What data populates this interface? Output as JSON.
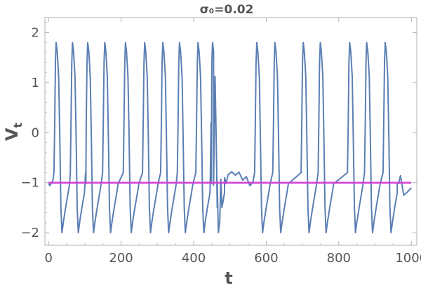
{
  "chart_data": {
    "type": "line",
    "title": "σ₀=0.02",
    "xlabel": "t",
    "ylabel_main": "V",
    "ylabel_sub": "t",
    "xlim": [
      -10,
      1015
    ],
    "ylim": [
      -2.25,
      2.3
    ],
    "xticks": [
      0,
      200,
      400,
      600,
      800,
      1000
    ],
    "xtick_labels": [
      "0",
      "200",
      "400",
      "600",
      "800",
      "1000"
    ],
    "yticks": [
      -2,
      -1,
      0,
      1,
      2
    ],
    "ytick_labels": [
      "−2",
      "−1",
      "0",
      "1",
      "2"
    ],
    "grid": false,
    "series": [
      {
        "color": "#5b7fb3",
        "spikes": [
          18,
          63,
          105,
          152,
          209,
          262,
          312,
          358,
          409,
          449,
          571,
          621,
          699,
          746,
          827,
          874,
          925
        ],
        "lulls": [
          {
            "t": [
              455,
              465,
              475,
              485,
              495,
              505,
              515,
              525,
              535,
              545,
              555,
              563
            ],
            "v": [
              -1.05,
              -0.98,
              -0.93,
              -0.9,
              -0.84,
              -0.78,
              -0.85,
              -0.79,
              -0.95,
              -0.88,
              -1.06,
              -1.0
            ]
          },
          {
            "t": [
              961,
              970,
              979,
              990,
              1000
            ],
            "v": [
              -1.0,
              -0.86,
              -1.25,
              -1.18,
              -1.1
            ]
          }
        ]
      },
      {
        "color": "#d23fd6",
        "x": [
          0,
          1000
        ],
        "values": [
          -1.0,
          -1.0
        ]
      }
    ]
  }
}
